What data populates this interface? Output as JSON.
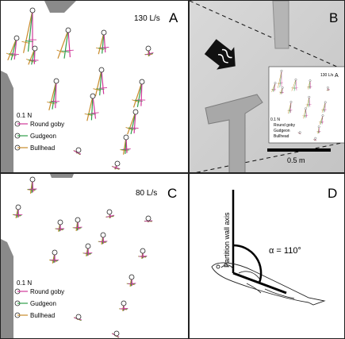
{
  "panels": {
    "a": {
      "letter": "A",
      "flow_rate": "130 L/s"
    },
    "b": {
      "letter": "B",
      "scale_label": "0.5 m",
      "inset_flow": "130 L/s",
      "inset_letter": "A"
    },
    "c": {
      "letter": "C",
      "flow_rate": "80 L/s"
    },
    "d": {
      "letter": "D",
      "axis_label": "Partition wall axis",
      "angle_label": "α = 110°"
    }
  },
  "legend": {
    "scale": "0.1 N",
    "entries": [
      {
        "label": "Round goby",
        "color": "#d0389a"
      },
      {
        "label": "Gudgeon",
        "color": "#2e9e4a"
      },
      {
        "label": "Bullhead",
        "color": "#c98a2a"
      }
    ]
  },
  "colors": {
    "goby": "#d0389a",
    "gudgeon": "#2e9e4a",
    "bullhead": "#c98a2a",
    "wall": "#8a8a8a",
    "channel": "#cfcfcf"
  }
}
